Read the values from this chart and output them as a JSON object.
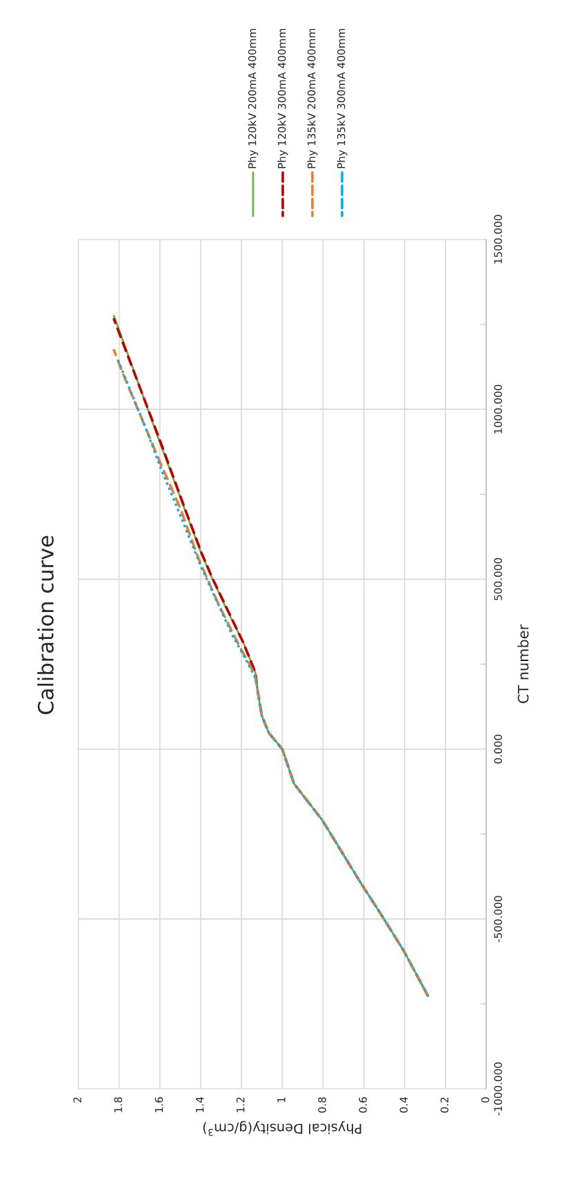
{
  "chart_data": {
    "type": "line",
    "title": "Calibration curve",
    "xlabel": "Physical Density(g/cm$^{3}$)",
    "ylabel": "CT number",
    "xlim": [
      2,
      0
    ],
    "xticks": [
      2,
      1.8,
      1.6,
      1.4,
      1.2,
      1,
      0.8,
      0.6,
      0.4,
      0.2,
      0
    ],
    "ylim": [
      -1000,
      1500
    ],
    "yticks": [
      {
        "value": -1000,
        "label": "-1000.000"
      },
      {
        "value": -750,
        "label": null
      },
      {
        "value": -500,
        "label": "-500.000"
      },
      {
        "value": -250,
        "label": null
      },
      {
        "value": 0,
        "label": "0.000"
      },
      {
        "value": 250,
        "label": null
      },
      {
        "value": 500,
        "label": "500.000"
      },
      {
        "value": 750,
        "label": null
      },
      {
        "value": 1000,
        "label": "1000.000"
      },
      {
        "value": 1250,
        "label": null
      },
      {
        "value": 1500,
        "label": "1500.000"
      }
    ],
    "grid": true,
    "legend": "top",
    "marker": "none",
    "series": [
      {
        "name": "Phy 120kV 200mA 400mm",
        "color": "#70ad47",
        "line_style": "solid",
        "values": [
          -725,
          -594,
          -488,
          -398,
          -209,
          -102,
          0,
          48,
          98,
          172,
          226,
          312,
          412,
          500,
          576,
          709,
          909,
          1275
        ],
        "x": [
          0.287,
          0.404,
          0.514,
          0.611,
          0.804,
          0.942,
          1.0,
          1.066,
          1.1,
          1.121,
          1.132,
          1.19,
          1.273,
          1.342,
          1.397,
          1.48,
          1.604,
          1.825
        ]
      },
      {
        "name": "Phy 120kV 300mA 400mm",
        "color": "#c00000",
        "line_style": "dashed",
        "values": [
          -725,
          -594,
          -488,
          -398,
          -209,
          -102,
          0,
          48,
          98,
          172,
          226,
          312,
          412,
          500,
          576,
          709,
          909,
          1265
        ],
        "x": [
          0.287,
          0.404,
          0.514,
          0.611,
          0.804,
          0.942,
          1.0,
          1.066,
          1.1,
          1.121,
          1.132,
          1.19,
          1.27,
          1.34,
          1.395,
          1.478,
          1.6,
          1.825
        ]
      },
      {
        "name": "Phy 135kV 200mA 400mm",
        "color": "#ed7d31",
        "line_style": "dashed",
        "values": [
          -725,
          -594,
          -488,
          -398,
          -209,
          -102,
          0,
          48,
          98,
          172,
          221,
          296,
          428,
          560,
          709,
          851,
          1108,
          1174
        ],
        "x": [
          0.287,
          0.404,
          0.514,
          0.611,
          0.804,
          0.942,
          1.0,
          1.066,
          1.1,
          1.121,
          1.135,
          1.204,
          1.314,
          1.41,
          1.5,
          1.604,
          1.783,
          1.825
        ]
      },
      {
        "name": "Phy 135kV 300mA 400mm",
        "color": "#00b0f0",
        "line_style": "dotted",
        "values": [
          -725,
          -594,
          -488,
          -398,
          -209,
          -102,
          0,
          48,
          98,
          172,
          205,
          246,
          337,
          445,
          535,
          709,
          818,
          950,
          1152
        ],
        "x": [
          0.287,
          0.404,
          0.514,
          0.611,
          0.804,
          0.942,
          1.0,
          1.066,
          1.1,
          1.121,
          1.128,
          1.163,
          1.246,
          1.328,
          1.397,
          1.514,
          1.59,
          1.673,
          1.81
        ]
      }
    ]
  }
}
